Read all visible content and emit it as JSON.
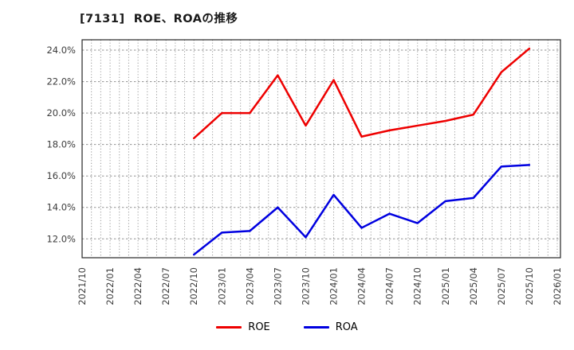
{
  "title": "[7131]  ROE、ROAの推移",
  "chart_data": {
    "type": "line",
    "x": [
      "2022/10",
      "2023/01",
      "2023/04",
      "2023/07",
      "2023/10",
      "2024/01",
      "2024/04",
      "2024/07",
      "2024/10",
      "2025/01",
      "2025/04",
      "2025/07",
      "2025/10"
    ],
    "series": [
      {
        "name": "ROE",
        "color": "#ee0000",
        "values": [
          18.4,
          20.0,
          20.0,
          22.4,
          19.2,
          22.1,
          18.5,
          18.9,
          19.2,
          19.5,
          19.9,
          22.6,
          24.1
        ]
      },
      {
        "name": "ROA",
        "color": "#0000e0",
        "values": [
          11.0,
          12.4,
          12.5,
          14.0,
          12.1,
          14.8,
          12.7,
          13.6,
          13.0,
          14.4,
          14.6,
          16.6,
          16.7
        ]
      }
    ],
    "xticks": [
      "2021/10",
      "2022/01",
      "2022/04",
      "2022/07",
      "2022/10",
      "2023/01",
      "2023/04",
      "2023/07",
      "2023/10",
      "2024/01",
      "2024/04",
      "2024/07",
      "2024/10",
      "2025/01",
      "2025/04",
      "2025/07",
      "2025/10",
      "2026/01"
    ],
    "yticks": [
      "24.0%",
      "22.0%",
      "20.0%",
      "18.0%",
      "16.0%",
      "14.0%",
      "12.0%"
    ],
    "ytick_values": [
      24,
      22,
      20,
      18,
      16,
      14,
      12
    ],
    "ylim": [
      10.8,
      24.66
    ],
    "grid": "dotted",
    "legend_position": "bottom-center",
    "axis_label_color": "#3c3c3c",
    "grid_color": "#999999",
    "border_color": "#262626"
  }
}
